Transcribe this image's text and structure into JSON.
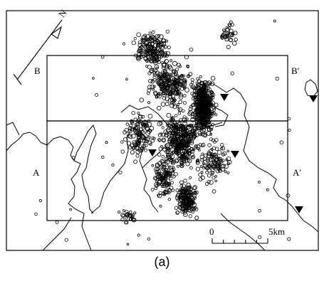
{
  "figure": {
    "caption": "(a)",
    "north_label": "N",
    "section_labels": {
      "a": "A",
      "a_prime": "A′",
      "b": "B",
      "b_prime": "B′"
    },
    "scale_bar": {
      "start_label": "0",
      "end_label": "5km"
    },
    "symbols": {
      "events": "open-circle",
      "stations": "inverted-triangle"
    },
    "station_count": 5
  }
}
